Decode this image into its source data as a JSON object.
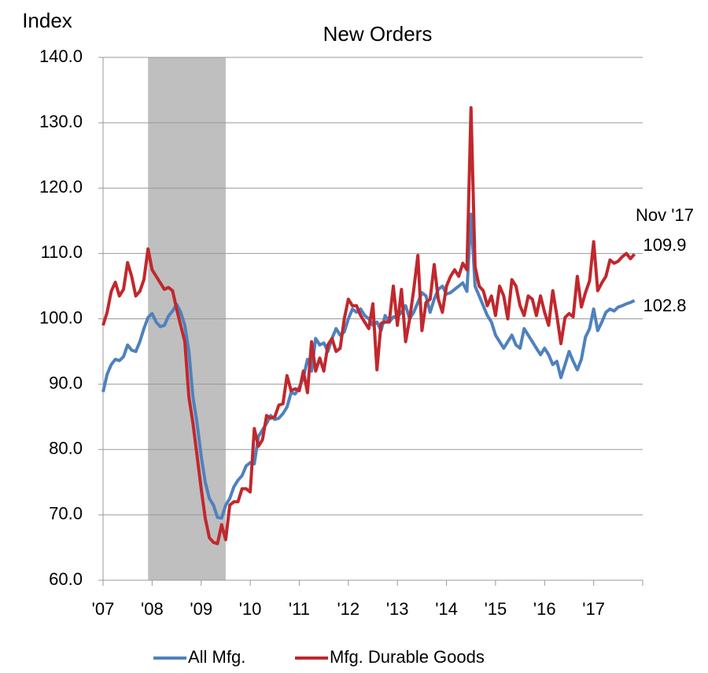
{
  "chart_data": {
    "type": "line",
    "title": "New Orders",
    "y_label": "Index",
    "xlim": [
      2007,
      2018
    ],
    "xticks": [
      {
        "value": 2007,
        "label": "'07"
      },
      {
        "value": 2008,
        "label": "'08"
      },
      {
        "value": 2009,
        "label": "'09"
      },
      {
        "value": 2010,
        "label": "'10"
      },
      {
        "value": 2011,
        "label": "'11"
      },
      {
        "value": 2012,
        "label": "'12"
      },
      {
        "value": 2013,
        "label": "'13"
      },
      {
        "value": 2014,
        "label": "'14"
      },
      {
        "value": 2015,
        "label": "'15"
      },
      {
        "value": 2016,
        "label": "'16"
      },
      {
        "value": 2017,
        "label": "'17"
      },
      2018
    ],
    "ylim": [
      60,
      140
    ],
    "yticks": [
      {
        "value": 60,
        "label": "60.0"
      },
      {
        "value": 70,
        "label": "70.0"
      },
      {
        "value": 80,
        "label": "80.0"
      },
      {
        "value": 90,
        "label": "90.0"
      },
      {
        "value": 100,
        "label": "100.0"
      },
      {
        "value": 110,
        "label": "110.0"
      },
      {
        "value": 120,
        "label": "120.0"
      },
      {
        "value": 130,
        "label": "130.0"
      },
      {
        "value": 140,
        "label": "140.0"
      }
    ],
    "grid": true,
    "recession": [
      2007.917,
      2009.5
    ],
    "recession_color": "#bfbfbf",
    "legend": "bottom",
    "annotations": [
      {
        "text": "Nov '17",
        "color": "#000000"
      },
      {
        "text": "109.9",
        "color": "#c0282d"
      },
      {
        "text": "102.8",
        "color": "#4f81bd"
      }
    ],
    "x": [
      2007,
      2007.083,
      2007.167,
      2007.25,
      2007.333,
      2007.417,
      2007.5,
      2007.583,
      2007.667,
      2007.75,
      2007.833,
      2007.917,
      2008,
      2008.083,
      2008.167,
      2008.25,
      2008.333,
      2008.417,
      2008.5,
      2008.583,
      2008.667,
      2008.75,
      2008.833,
      2008.917,
      2009,
      2009.083,
      2009.167,
      2009.25,
      2009.333,
      2009.417,
      2009.5,
      2009.583,
      2009.667,
      2009.75,
      2009.833,
      2009.917,
      2010,
      2010.083,
      2010.167,
      2010.25,
      2010.333,
      2010.417,
      2010.5,
      2010.583,
      2010.667,
      2010.75,
      2010.833,
      2010.917,
      2011,
      2011.083,
      2011.167,
      2011.25,
      2011.333,
      2011.417,
      2011.5,
      2011.583,
      2011.667,
      2011.75,
      2011.833,
      2011.917,
      2012,
      2012.083,
      2012.167,
      2012.25,
      2012.333,
      2012.417,
      2012.5,
      2012.583,
      2012.667,
      2012.75,
      2012.833,
      2012.917,
      2013,
      2013.083,
      2013.167,
      2013.25,
      2013.333,
      2013.417,
      2013.5,
      2013.583,
      2013.667,
      2013.75,
      2013.833,
      2013.917,
      2014,
      2014.083,
      2014.167,
      2014.25,
      2014.333,
      2014.417,
      2014.5,
      2014.583,
      2014.667,
      2014.75,
      2014.833,
      2014.917,
      2015,
      2015.083,
      2015.167,
      2015.25,
      2015.333,
      2015.417,
      2015.5,
      2015.583,
      2015.667,
      2015.75,
      2015.833,
      2015.917,
      2016,
      2016.083,
      2016.167,
      2016.25,
      2016.333,
      2016.417,
      2016.5,
      2016.583,
      2016.667,
      2016.75,
      2016.833,
      2016.917,
      2017,
      2017.083,
      2017.167,
      2017.25,
      2017.333,
      2017.417,
      2017.5,
      2017.583,
      2017.667,
      2017.75,
      2017.833
    ],
    "series": [
      {
        "name": "All Mfg.",
        "color": "#4f81bd",
        "values": [
          88.8,
          91.5,
          93,
          93.8,
          93.6,
          94.2,
          96,
          95.2,
          95,
          96.5,
          98.5,
          100.2,
          100.8,
          99.5,
          98.8,
          99,
          100.4,
          101.2,
          102.2,
          101,
          99,
          95,
          88,
          84,
          79,
          75,
          72.5,
          71.5,
          69.6,
          69.5,
          71.5,
          72.5,
          74.3,
          75.3,
          76,
          77.5,
          78,
          77.8,
          82,
          83,
          84,
          85.2,
          84.6,
          84.8,
          85.5,
          86.5,
          88.7,
          88.5,
          89.5,
          91,
          93.8,
          92,
          97,
          96,
          96.3,
          95,
          97,
          98.5,
          97.5,
          98,
          100,
          101.5,
          101,
          101.5,
          100.5,
          100,
          99,
          99.5,
          98.2,
          100.5,
          99.5,
          100.3,
          100.3,
          101,
          102,
          100,
          101,
          102.5,
          104,
          103.5,
          101,
          103,
          104.5,
          105,
          103.8,
          104,
          104.5,
          105,
          105.5,
          104.2,
          116,
          105,
          103.5,
          102,
          100.5,
          99.5,
          97.5,
          96.5,
          95.5,
          96.5,
          97.5,
          96,
          95.5,
          98.5,
          97.5,
          96.5,
          95.5,
          94.5,
          95.5,
          94.5,
          93,
          93.5,
          91,
          93,
          95,
          93.5,
          92.2,
          93.8,
          97.2,
          98.5,
          101.5,
          98.2,
          99.5,
          101,
          101.5,
          101.2,
          101.8,
          102,
          102.3,
          102.5,
          102.8
        ]
      },
      {
        "name": "Mfg. Durable Goods",
        "color": "#c0282d",
        "values": [
          99,
          101,
          104.2,
          105.6,
          103.5,
          104.5,
          108.6,
          106.5,
          103.5,
          104.2,
          106,
          110.7,
          107.5,
          106.5,
          105.5,
          104.5,
          104.8,
          104.3,
          101.5,
          99,
          96.5,
          88,
          84,
          79,
          74,
          69.5,
          66.5,
          65.8,
          65.6,
          68.5,
          66.2,
          71.5,
          72,
          72,
          74,
          74,
          73.5,
          83.2,
          80.5,
          81.5,
          85.2,
          84.8,
          85,
          86.8,
          87,
          91.3,
          89,
          89.3,
          89,
          92,
          88.7,
          96.5,
          92,
          94,
          92,
          96,
          97,
          95,
          95.5,
          100,
          103,
          102,
          102,
          100.5,
          99.5,
          98.5,
          102.3,
          92.2,
          99.3,
          99.5,
          99.5,
          105,
          99,
          104.5,
          96.5,
          100,
          104.5,
          109.7,
          98.2,
          102.5,
          103,
          108.3,
          103,
          101,
          105,
          106.5,
          107.5,
          106.5,
          108.5,
          107.5,
          132.3,
          108,
          105,
          104.3,
          102,
          103.5,
          100.5,
          105,
          103.5,
          100,
          106,
          105,
          102,
          100.5,
          103.5,
          103,
          100.5,
          103.5,
          101,
          99,
          104.3,
          100.5,
          96.2,
          100.2,
          100.8,
          100.3,
          106.5,
          101.8,
          104,
          105.8,
          111.8,
          104.3,
          105.5,
          106.5,
          109,
          108.5,
          108.8,
          109.5,
          110,
          109.2,
          109.9
        ]
      }
    ]
  }
}
